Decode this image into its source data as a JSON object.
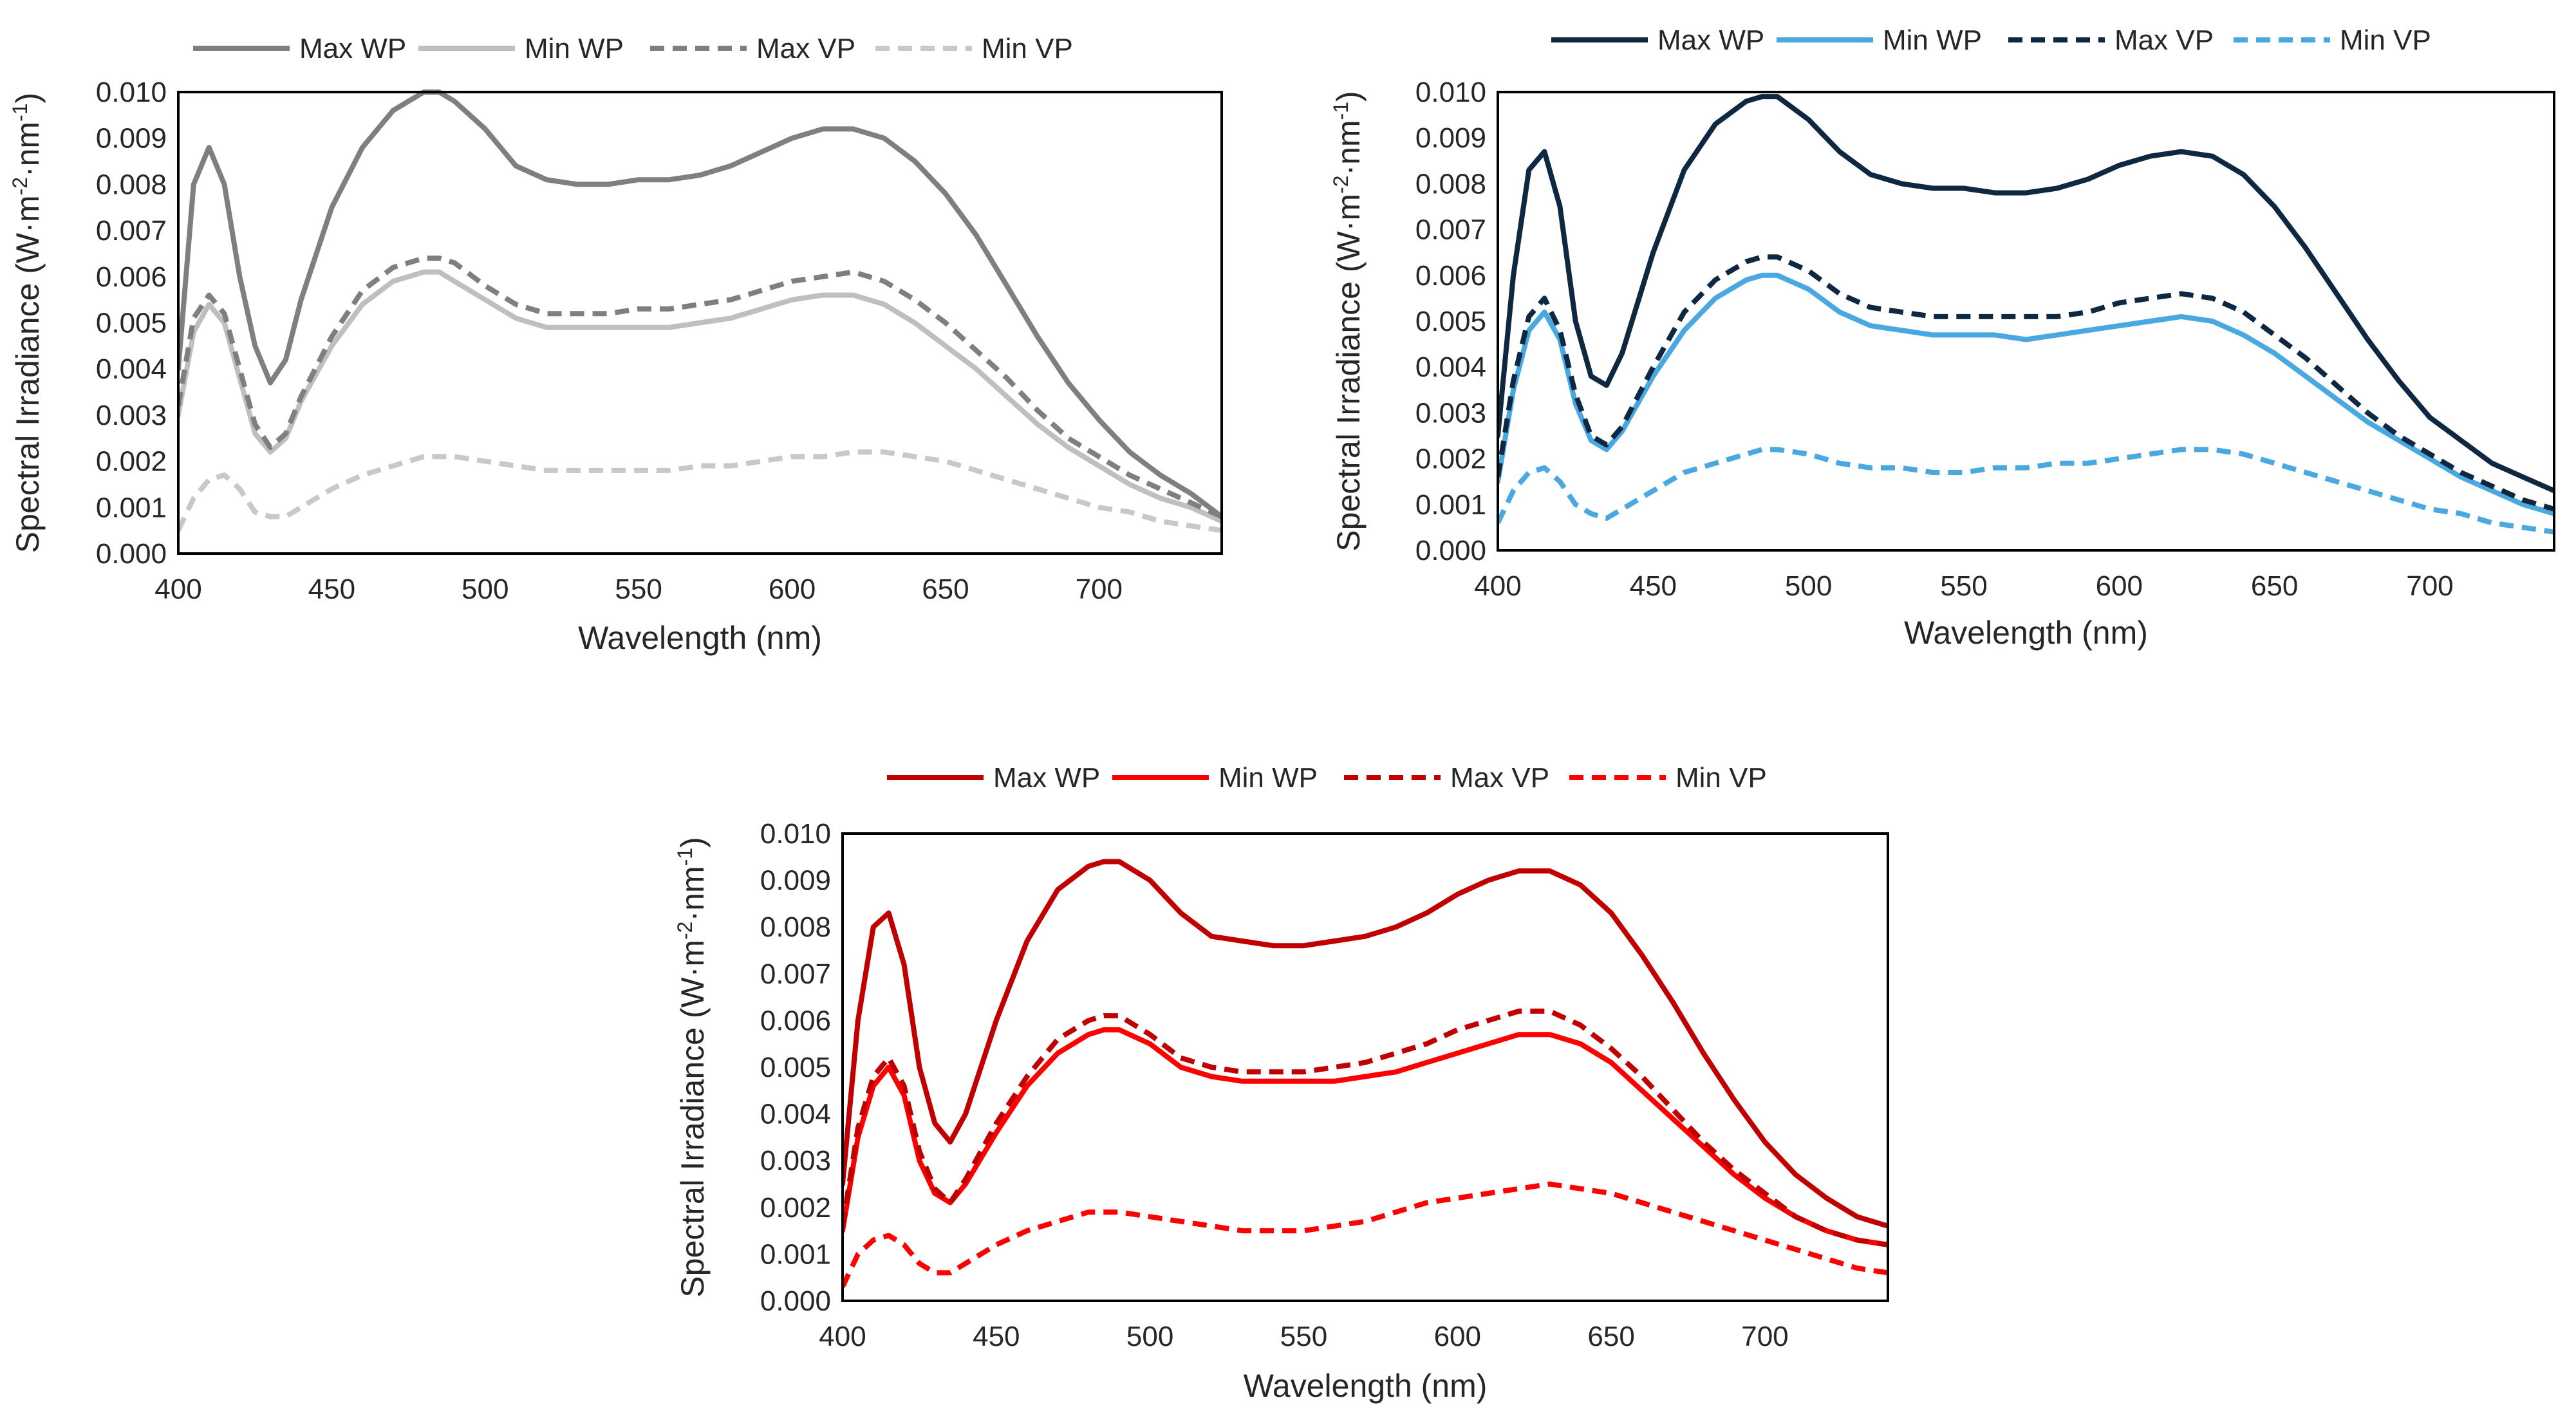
{
  "chart_data": [
    {
      "type": "line",
      "title": "",
      "xlabel": "Wavelength (nm)",
      "ylabel_prefix": "Spectral Irradiance (W·m",
      "ylabel_sup1": "-2",
      "ylabel_mid": "·nm",
      "ylabel_sup2": "-1",
      "ylabel_suffix": ")",
      "xlim": [
        400,
        740
      ],
      "ylim": [
        0,
        0.01
      ],
      "xticks": [
        "400",
        "450",
        "500",
        "550",
        "600",
        "650",
        "700"
      ],
      "yticks": [
        "0.000",
        "0.001",
        "0.002",
        "0.003",
        "0.004",
        "0.005",
        "0.006",
        "0.007",
        "0.008",
        "0.009",
        "0.010"
      ],
      "grid": false,
      "legend_position": "top",
      "x": [
        400,
        405,
        410,
        415,
        420,
        425,
        430,
        435,
        440,
        450,
        460,
        470,
        480,
        485,
        490,
        500,
        510,
        520,
        530,
        540,
        550,
        560,
        570,
        580,
        590,
        600,
        610,
        620,
        630,
        640,
        650,
        660,
        670,
        680,
        690,
        700,
        710,
        720,
        730,
        740
      ],
      "series": [
        {
          "name": "Max WP",
          "color": "#7f7f7f",
          "dash": "solid",
          "values": [
            0.004,
            0.008,
            0.0088,
            0.008,
            0.006,
            0.0045,
            0.0037,
            0.0042,
            0.0055,
            0.0075,
            0.0088,
            0.0096,
            0.01,
            0.01,
            0.0098,
            0.0092,
            0.0084,
            0.0081,
            0.008,
            0.008,
            0.0081,
            0.0081,
            0.0082,
            0.0084,
            0.0087,
            0.009,
            0.0092,
            0.0092,
            0.009,
            0.0085,
            0.0078,
            0.0069,
            0.0058,
            0.0047,
            0.0037,
            0.0029,
            0.0022,
            0.0017,
            0.0013,
            0.0008
          ]
        },
        {
          "name": "Min WP",
          "color": "#bfbfbf",
          "dash": "solid",
          "values": [
            0.003,
            0.0048,
            0.0054,
            0.005,
            0.0038,
            0.0026,
            0.0022,
            0.0025,
            0.0033,
            0.0045,
            0.0054,
            0.0059,
            0.0061,
            0.0061,
            0.0059,
            0.0055,
            0.0051,
            0.0049,
            0.0049,
            0.0049,
            0.0049,
            0.0049,
            0.005,
            0.0051,
            0.0053,
            0.0055,
            0.0056,
            0.0056,
            0.0054,
            0.005,
            0.0045,
            0.004,
            0.0034,
            0.0028,
            0.0023,
            0.0019,
            0.0015,
            0.0012,
            0.001,
            0.0007
          ]
        },
        {
          "name": "Max VP",
          "color": "#7f7f7f",
          "dash": "dashed",
          "values": [
            0.0032,
            0.0051,
            0.0056,
            0.0052,
            0.004,
            0.0028,
            0.0023,
            0.0026,
            0.0034,
            0.0047,
            0.0057,
            0.0062,
            0.0064,
            0.0064,
            0.0063,
            0.0058,
            0.0054,
            0.0052,
            0.0052,
            0.0052,
            0.0053,
            0.0053,
            0.0054,
            0.0055,
            0.0057,
            0.0059,
            0.006,
            0.0061,
            0.0059,
            0.0055,
            0.005,
            0.0044,
            0.0038,
            0.0031,
            0.0025,
            0.0021,
            0.0017,
            0.0014,
            0.0011,
            0.0008
          ]
        },
        {
          "name": "Min VP",
          "color": "#c8c8c8",
          "dash": "dashed",
          "values": [
            0.0005,
            0.0012,
            0.0016,
            0.0017,
            0.0014,
            0.0009,
            0.0008,
            0.0008,
            0.001,
            0.0014,
            0.0017,
            0.0019,
            0.0021,
            0.0021,
            0.0021,
            0.002,
            0.0019,
            0.0018,
            0.0018,
            0.0018,
            0.0018,
            0.0018,
            0.0019,
            0.0019,
            0.002,
            0.0021,
            0.0021,
            0.0022,
            0.0022,
            0.0021,
            0.002,
            0.0018,
            0.0016,
            0.0014,
            0.0012,
            0.001,
            0.0009,
            0.0007,
            0.0006,
            0.0005
          ]
        }
      ]
    },
    {
      "type": "line",
      "title": "",
      "xlabel": "Wavelength (nm)",
      "ylabel_prefix": "Spectral Irradiance (W·m",
      "ylabel_sup1": "-2",
      "ylabel_mid": "·nm",
      "ylabel_sup2": "-1",
      "ylabel_suffix": ")",
      "xlim": [
        400,
        740
      ],
      "ylim": [
        0,
        0.01
      ],
      "xticks": [
        "400",
        "450",
        "500",
        "550",
        "600",
        "650",
        "700"
      ],
      "yticks": [
        "0.000",
        "0.001",
        "0.002",
        "0.003",
        "0.004",
        "0.005",
        "0.006",
        "0.007",
        "0.008",
        "0.009",
        "0.010"
      ],
      "grid": false,
      "legend_position": "top",
      "x": [
        400,
        405,
        410,
        415,
        420,
        425,
        430,
        435,
        440,
        450,
        460,
        470,
        480,
        485,
        490,
        500,
        510,
        520,
        530,
        540,
        550,
        560,
        570,
        580,
        590,
        600,
        610,
        620,
        630,
        640,
        650,
        660,
        670,
        680,
        690,
        700,
        710,
        720,
        730,
        740
      ],
      "series": [
        {
          "name": "Max WP",
          "color": "#0e2841",
          "dash": "solid",
          "values": [
            0.0025,
            0.006,
            0.0083,
            0.0087,
            0.0075,
            0.005,
            0.0038,
            0.0036,
            0.0043,
            0.0065,
            0.0083,
            0.0093,
            0.0098,
            0.0099,
            0.0099,
            0.0094,
            0.0087,
            0.0082,
            0.008,
            0.0079,
            0.0079,
            0.0078,
            0.0078,
            0.0079,
            0.0081,
            0.0084,
            0.0086,
            0.0087,
            0.0086,
            0.0082,
            0.0075,
            0.0066,
            0.0056,
            0.0046,
            0.0037,
            0.0029,
            0.0024,
            0.0019,
            0.0016,
            0.0013
          ]
        },
        {
          "name": "Min WP",
          "color": "#4aa8e0",
          "dash": "solid",
          "values": [
            0.0015,
            0.0035,
            0.0048,
            0.0052,
            0.0046,
            0.0032,
            0.0024,
            0.0022,
            0.0026,
            0.0038,
            0.0048,
            0.0055,
            0.0059,
            0.006,
            0.006,
            0.0057,
            0.0052,
            0.0049,
            0.0048,
            0.0047,
            0.0047,
            0.0047,
            0.0046,
            0.0047,
            0.0048,
            0.0049,
            0.005,
            0.0051,
            0.005,
            0.0047,
            0.0043,
            0.0038,
            0.0033,
            0.0028,
            0.0024,
            0.002,
            0.0016,
            0.0013,
            0.001,
            0.0008
          ]
        },
        {
          "name": "Max VP",
          "color": "#0e2841",
          "dash": "dashed",
          "values": [
            0.0016,
            0.0037,
            0.0051,
            0.0055,
            0.0048,
            0.0034,
            0.0025,
            0.0023,
            0.0027,
            0.004,
            0.0052,
            0.0059,
            0.0063,
            0.0064,
            0.0064,
            0.0061,
            0.0056,
            0.0053,
            0.0052,
            0.0051,
            0.0051,
            0.0051,
            0.0051,
            0.0051,
            0.0052,
            0.0054,
            0.0055,
            0.0056,
            0.0055,
            0.0052,
            0.0047,
            0.0042,
            0.0036,
            0.003,
            0.0025,
            0.0021,
            0.0017,
            0.0014,
            0.0011,
            0.0009
          ]
        },
        {
          "name": "Min VP",
          "color": "#4aa8e0",
          "dash": "dashed",
          "values": [
            0.0006,
            0.0013,
            0.0017,
            0.0018,
            0.0015,
            0.001,
            0.0008,
            0.0007,
            0.0009,
            0.0013,
            0.0017,
            0.0019,
            0.0021,
            0.0022,
            0.0022,
            0.0021,
            0.0019,
            0.0018,
            0.0018,
            0.0017,
            0.0017,
            0.0018,
            0.0018,
            0.0019,
            0.0019,
            0.002,
            0.0021,
            0.0022,
            0.0022,
            0.0021,
            0.0019,
            0.0017,
            0.0015,
            0.0013,
            0.0011,
            0.0009,
            0.0008,
            0.0006,
            0.0005,
            0.0004
          ]
        }
      ]
    },
    {
      "type": "line",
      "title": "",
      "xlabel": "Wavelength (nm)",
      "ylabel_prefix": "Spectral Irradiance (W·m",
      "ylabel_sup1": "-2",
      "ylabel_mid": "·nm",
      "ylabel_sup2": "-1",
      "ylabel_suffix": ")",
      "xlim": [
        400,
        740
      ],
      "ylim": [
        0,
        0.01
      ],
      "xticks": [
        "400",
        "450",
        "500",
        "550",
        "600",
        "650",
        "700"
      ],
      "yticks": [
        "0.000",
        "0.001",
        "0.002",
        "0.003",
        "0.004",
        "0.005",
        "0.006",
        "0.007",
        "0.008",
        "0.009",
        "0.010"
      ],
      "grid": false,
      "legend_position": "top",
      "x": [
        400,
        405,
        410,
        415,
        420,
        425,
        430,
        435,
        440,
        450,
        460,
        470,
        480,
        485,
        490,
        500,
        510,
        520,
        530,
        540,
        550,
        560,
        570,
        580,
        590,
        600,
        610,
        620,
        630,
        640,
        650,
        660,
        670,
        680,
        690,
        700,
        710,
        720,
        730,
        740
      ],
      "series": [
        {
          "name": "Max WP",
          "color": "#c00000",
          "dash": "solid",
          "values": [
            0.0025,
            0.006,
            0.008,
            0.0083,
            0.0072,
            0.005,
            0.0038,
            0.0034,
            0.004,
            0.006,
            0.0077,
            0.0088,
            0.0093,
            0.0094,
            0.0094,
            0.009,
            0.0083,
            0.0078,
            0.0077,
            0.0076,
            0.0076,
            0.0077,
            0.0078,
            0.008,
            0.0083,
            0.0087,
            0.009,
            0.0092,
            0.0092,
            0.0089,
            0.0083,
            0.0074,
            0.0064,
            0.0053,
            0.0043,
            0.0034,
            0.0027,
            0.0022,
            0.0018,
            0.0016
          ]
        },
        {
          "name": "Min WP",
          "color": "#ff0000",
          "dash": "solid",
          "values": [
            0.0015,
            0.0035,
            0.0046,
            0.005,
            0.0044,
            0.003,
            0.0023,
            0.0021,
            0.0025,
            0.0036,
            0.0046,
            0.0053,
            0.0057,
            0.0058,
            0.0058,
            0.0055,
            0.005,
            0.0048,
            0.0047,
            0.0047,
            0.0047,
            0.0047,
            0.0048,
            0.0049,
            0.0051,
            0.0053,
            0.0055,
            0.0057,
            0.0057,
            0.0055,
            0.0051,
            0.0045,
            0.0039,
            0.0033,
            0.0027,
            0.0022,
            0.0018,
            0.0015,
            0.0013,
            0.0012
          ]
        },
        {
          "name": "Max VP",
          "color": "#c00000",
          "dash": "dashed",
          "values": [
            0.0016,
            0.0037,
            0.0048,
            0.0052,
            0.0046,
            0.0032,
            0.0024,
            0.0021,
            0.0026,
            0.0038,
            0.0048,
            0.0056,
            0.006,
            0.0061,
            0.0061,
            0.0057,
            0.0052,
            0.005,
            0.0049,
            0.0049,
            0.0049,
            0.005,
            0.0051,
            0.0053,
            0.0055,
            0.0058,
            0.006,
            0.0062,
            0.0062,
            0.0059,
            0.0054,
            0.0048,
            0.0041,
            0.0034,
            0.0028,
            0.0023,
            0.0018,
            0.0015,
            0.0013,
            0.0012
          ]
        },
        {
          "name": "Min VP",
          "color": "#ff0000",
          "dash": "dashed",
          "values": [
            0.0003,
            0.001,
            0.0013,
            0.0014,
            0.0012,
            0.0008,
            0.0006,
            0.0006,
            0.0008,
            0.0012,
            0.0015,
            0.0017,
            0.0019,
            0.0019,
            0.0019,
            0.0018,
            0.0017,
            0.0016,
            0.0015,
            0.0015,
            0.0015,
            0.0016,
            0.0017,
            0.0019,
            0.0021,
            0.0022,
            0.0023,
            0.0024,
            0.0025,
            0.0024,
            0.0023,
            0.0021,
            0.0019,
            0.0017,
            0.0015,
            0.0013,
            0.0011,
            0.0009,
            0.0007,
            0.0006
          ]
        }
      ]
    }
  ]
}
